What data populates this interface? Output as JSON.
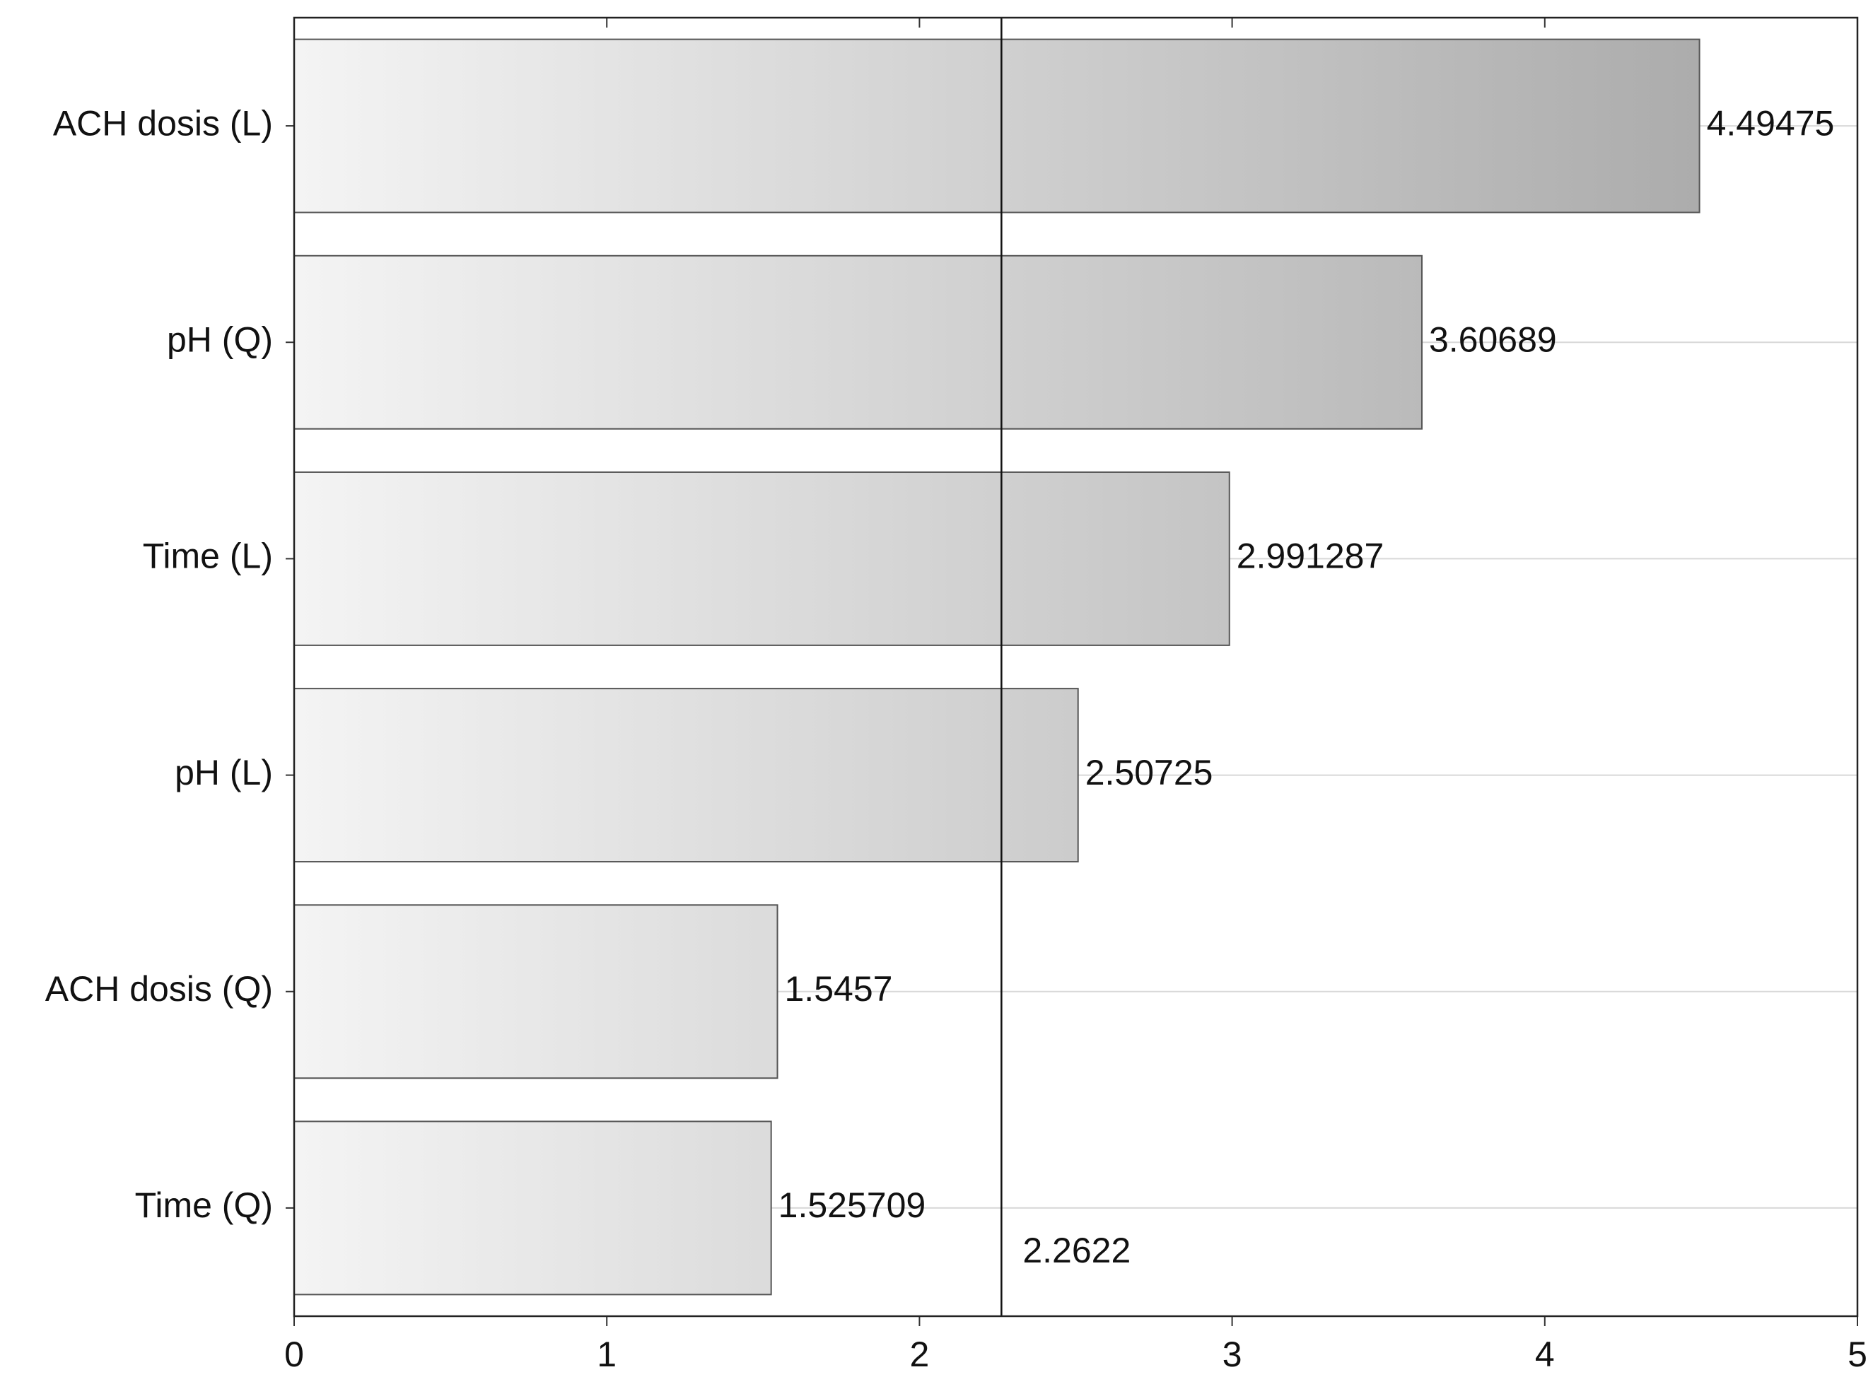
{
  "chart_data": {
    "type": "bar",
    "orientation": "horizontal",
    "categories": [
      "ACH dosis (L)",
      "pH (Q)",
      "Time (L)",
      "pH (L)",
      "ACH dosis (Q)",
      "Time (Q)"
    ],
    "values": [
      4.49475,
      3.60689,
      2.991287,
      2.50725,
      1.5457,
      1.525709
    ],
    "color": "#a4a4a4",
    "xlim": [
      0,
      5
    ],
    "xticks": [
      0,
      1,
      2,
      3,
      4,
      5
    ],
    "reference_line": {
      "value": 2.2622
    },
    "grid": true
  }
}
